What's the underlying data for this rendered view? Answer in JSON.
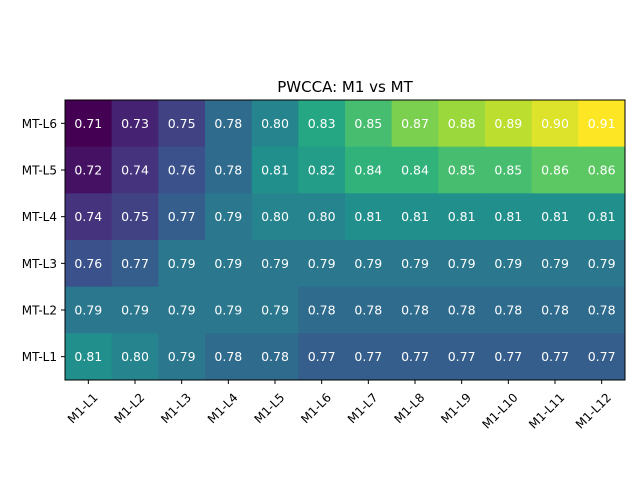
{
  "chart_data": {
    "type": "heatmap",
    "title": "PWCCA: M1 vs MT",
    "xlabel": "",
    "ylabel": "",
    "x_categories": [
      "M1-L1",
      "M1-L2",
      "M1-L3",
      "M1-L4",
      "M1-L5",
      "M1-L6",
      "M1-L7",
      "M1-L8",
      "M1-L9",
      "M1-L10",
      "M1-L11",
      "M1-L12"
    ],
    "y_categories": [
      "MT-L6",
      "MT-L5",
      "MT-L4",
      "MT-L3",
      "MT-L2",
      "MT-L1"
    ],
    "values": [
      [
        0.71,
        0.73,
        0.75,
        0.78,
        0.8,
        0.83,
        0.85,
        0.87,
        0.88,
        0.89,
        0.9,
        0.91
      ],
      [
        0.72,
        0.74,
        0.76,
        0.78,
        0.81,
        0.82,
        0.84,
        0.84,
        0.85,
        0.85,
        0.86,
        0.86
      ],
      [
        0.74,
        0.75,
        0.77,
        0.79,
        0.8,
        0.8,
        0.81,
        0.81,
        0.81,
        0.81,
        0.81,
        0.81
      ],
      [
        0.76,
        0.77,
        0.79,
        0.79,
        0.79,
        0.79,
        0.79,
        0.79,
        0.79,
        0.79,
        0.79,
        0.79
      ],
      [
        0.79,
        0.79,
        0.79,
        0.79,
        0.79,
        0.78,
        0.78,
        0.78,
        0.78,
        0.78,
        0.78,
        0.78
      ],
      [
        0.81,
        0.8,
        0.79,
        0.78,
        0.78,
        0.77,
        0.77,
        0.77,
        0.77,
        0.77,
        0.77,
        0.77
      ]
    ],
    "colormap": "viridis",
    "value_format": "2 decimals",
    "grid": false,
    "colorbar": false
  }
}
